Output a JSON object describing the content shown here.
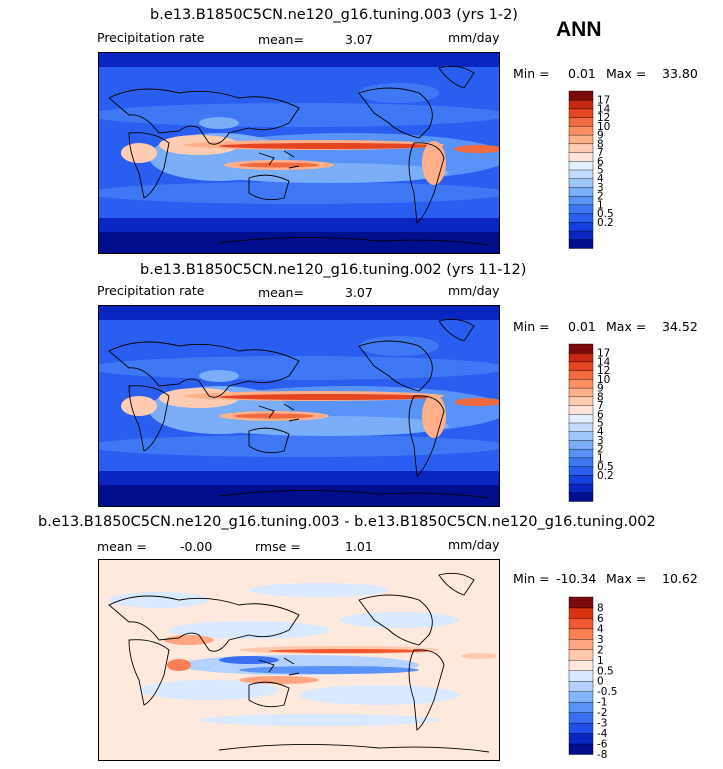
{
  "season": "ANN",
  "units": "mm/day",
  "colors": {
    "abs_scale": [
      "#000d8c",
      "#0a26c0",
      "#1540e0",
      "#2a5ef0",
      "#3f78f5",
      "#5a93f7",
      "#7aaef9",
      "#9fc6fb",
      "#c3dcfd",
      "#e5f0ff",
      "#ffe5d9",
      "#ffccb3",
      "#ffb08a",
      "#ff8e61",
      "#f26a3f",
      "#e54520",
      "#c42812",
      "#7c0a0a"
    ],
    "diff_scale": [
      "#000d8c",
      "#0a26c0",
      "#1f4fe8",
      "#3a6ff3",
      "#5a93f7",
      "#83b5fa",
      "#b4d2fd",
      "#d9e9ff",
      "#ffe9dc",
      "#ffc8ad",
      "#ffa580",
      "#ff7f55",
      "#f2582f",
      "#da3312",
      "#7c0a0a"
    ]
  },
  "panels": [
    {
      "title": "b.e13.B1850C5CN.ne120_g16.tuning.003 (yrs 1-2)",
      "variable": "Precipitation rate",
      "mean_label": "mean=",
      "mean_value": "3.07",
      "units": "mm/day",
      "min_label": "Min =",
      "min_value": "0.01",
      "max_label": "Max =",
      "max_value": "33.80",
      "colorbar_labels": [
        "17",
        "14",
        "12",
        "10",
        "9",
        "8",
        "7",
        "6",
        "5",
        "4",
        "3",
        "2",
        "1",
        "0.5",
        "0.2"
      ]
    },
    {
      "title": "b.e13.B1850C5CN.ne120_g16.tuning.002 (yrs 11-12)",
      "variable": "Precipitation rate",
      "mean_label": "mean=",
      "mean_value": "3.07",
      "units": "mm/day",
      "min_label": "Min =",
      "min_value": "0.01",
      "max_label": "Max =",
      "max_value": "34.52",
      "colorbar_labels": [
        "17",
        "14",
        "12",
        "10",
        "9",
        "8",
        "7",
        "6",
        "5",
        "4",
        "3",
        "2",
        "1",
        "0.5",
        "0.2"
      ]
    },
    {
      "title": "b.e13.B1850C5CN.ne120_g16.tuning.003 - b.e13.B1850C5CN.ne120_g16.tuning.002",
      "mean_label": "mean =",
      "mean_value": "-0.00",
      "rmse_label": "rmse =",
      "rmse_value": "1.01",
      "units": "mm/day",
      "min_label": "Min =",
      "min_value": "-10.34",
      "max_label": "Max =",
      "max_value": "10.62",
      "colorbar_labels": [
        "8",
        "6",
        "4",
        "3",
        "2",
        "1",
        "0.5",
        "0",
        "-0.5",
        "-1",
        "-2",
        "-3",
        "-4",
        "-6",
        "-8"
      ]
    }
  ]
}
